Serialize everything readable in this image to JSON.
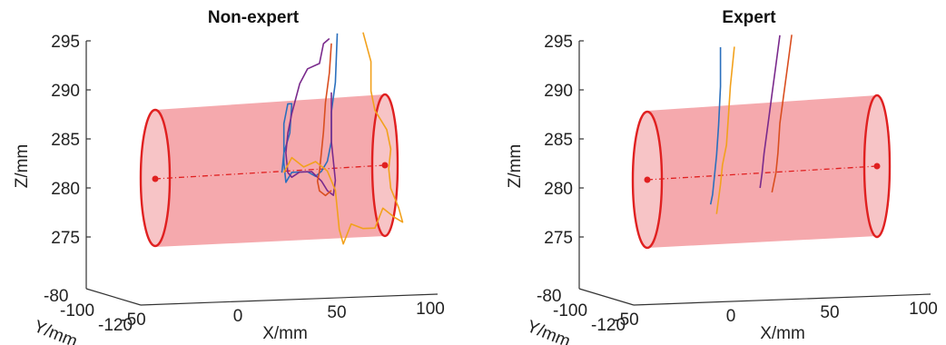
{
  "chart_data": [
    {
      "type": "line",
      "title": "Non-expert",
      "xlabel": "X/mm",
      "ylabel": "Y/mm",
      "zlabel": "Z/mm",
      "x_ticks": [
        "-50",
        "0",
        "50",
        "100"
      ],
      "y_ticks": [
        "-80",
        "-100",
        "-120"
      ],
      "z_ticks": [
        "295",
        "290",
        "285",
        "280",
        "275"
      ],
      "xlim": [
        -50,
        100
      ],
      "zlim": [
        272,
        296
      ],
      "cylinder": {
        "x_start": -45,
        "x_end": 73,
        "axis_color": "#e02020",
        "fill_color": "#f4a0a4"
      },
      "series": [
        {
          "color": "#2a6fbd",
          "points": [
            [
              53,
              295
            ],
            [
              52,
              290
            ],
            [
              50,
              287
            ],
            [
              50,
              284
            ],
            [
              48,
              282
            ],
            [
              45,
              281
            ],
            [
              42,
              280.5
            ],
            [
              38,
              281
            ],
            [
              30,
              281
            ],
            [
              27,
              280
            ],
            [
              26,
              282
            ],
            [
              26,
              286
            ],
            [
              28,
              288
            ],
            [
              30,
              288
            ],
            [
              29,
              285
            ],
            [
              26,
              283
            ],
            [
              25,
              281
            ]
          ]
        },
        {
          "color": "#7a2a8c",
          "points": [
            [
              49,
              294.5
            ],
            [
              46,
              294
            ],
            [
              44,
              292
            ],
            [
              38,
              291.5
            ],
            [
              34,
              290
            ],
            [
              30,
              287
            ],
            [
              28,
              285
            ],
            [
              27,
              283
            ],
            [
              28,
              281
            ],
            [
              30,
              280.5
            ],
            [
              34,
              281
            ],
            [
              40,
              281
            ],
            [
              45,
              280
            ],
            [
              48,
              279
            ],
            [
              51,
              278.5
            ],
            [
              52,
              280
            ],
            [
              50,
              284
            ],
            [
              50,
              287
            ],
            [
              50,
              289
            ]
          ]
        },
        {
          "color": "#d94e1f",
          "points": [
            [
              50,
              294
            ],
            [
              49,
              291
            ],
            [
              47,
              288
            ],
            [
              46,
              285
            ],
            [
              45,
              283
            ],
            [
              44,
              281
            ],
            [
              43,
              280
            ],
            [
              44,
              279
            ],
            [
              47,
              278.5
            ],
            [
              50,
              279
            ]
          ]
        },
        {
          "color": "#f2a11c",
          "points": [
            [
              66,
              295
            ],
            [
              70,
              292
            ],
            [
              70,
              289
            ],
            [
              72,
              287
            ],
            [
              78,
              285
            ],
            [
              80,
              283
            ],
            [
              79,
              281
            ],
            [
              80,
              279
            ],
            [
              84,
              277
            ],
            [
              86,
              275.5
            ],
            [
              82,
              276
            ],
            [
              76,
              277
            ],
            [
              72,
              275
            ],
            [
              66,
              275
            ],
            [
              60,
              275.5
            ],
            [
              56,
              273.5
            ],
            [
              54,
              275
            ],
            [
              52,
              279
            ],
            [
              48,
              281
            ],
            [
              42,
              282
            ],
            [
              36,
              281.5
            ],
            [
              30,
              282.5
            ],
            [
              26,
              281
            ]
          ]
        }
      ]
    },
    {
      "type": "line",
      "title": "Expert",
      "xlabel": "X/mm",
      "ylabel": "Y/mm",
      "zlabel": "Z/mm",
      "x_ticks": [
        "-50",
        "0",
        "50",
        "100"
      ],
      "y_ticks": [
        "-80",
        "-100",
        "-120"
      ],
      "z_ticks": [
        "295",
        "290",
        "285",
        "280",
        "275"
      ],
      "xlim": [
        -50,
        100
      ],
      "zlim": [
        272,
        296
      ],
      "cylinder": {
        "x_start": -45,
        "x_end": 73,
        "axis_color": "#e02020",
        "fill_color": "#f4a0a4"
      },
      "series": [
        {
          "color": "#2a6fbd",
          "points": [
            [
              -2,
              294
            ],
            [
              -2,
              290
            ],
            [
              -3,
              286
            ],
            [
              -4,
              283
            ],
            [
              -5,
              281
            ],
            [
              -6,
              279
            ],
            [
              -7,
              278
            ]
          ]
        },
        {
          "color": "#f2a11c",
          "points": [
            [
              5,
              294
            ],
            [
              3,
              290
            ],
            [
              2,
              287
            ],
            [
              1,
              284
            ],
            [
              -1,
              282
            ],
            [
              -2,
              280
            ],
            [
              -4,
              277
            ]
          ]
        },
        {
          "color": "#7a2a8c",
          "points": [
            [
              28,
              295
            ],
            [
              26,
              292
            ],
            [
              24,
              289
            ],
            [
              22,
              286
            ],
            [
              20,
              283
            ],
            [
              19,
              281
            ],
            [
              18,
              279.5
            ]
          ]
        },
        {
          "color": "#d94e1f",
          "points": [
            [
              34,
              295
            ],
            [
              32,
              292
            ],
            [
              30,
              289
            ],
            [
              28,
              286
            ],
            [
              27,
              283
            ],
            [
              26,
              281
            ],
            [
              24,
              279
            ]
          ]
        }
      ]
    }
  ]
}
